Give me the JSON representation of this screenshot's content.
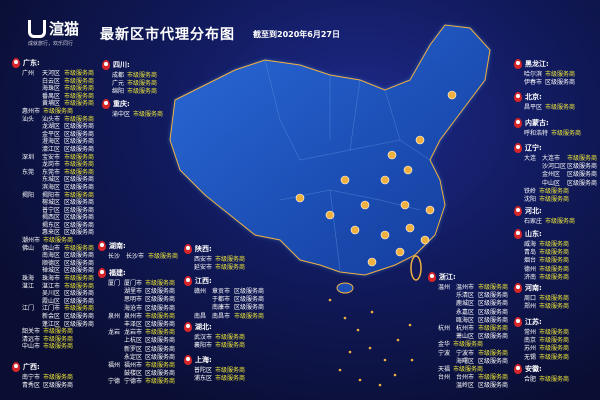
{
  "header": {
    "logo_name": "渲猫",
    "logo_sub": "YIMAO",
    "logo_slogan": "成就旅行，欢乐同行",
    "title": "最新区市代理分布图",
    "date": "截至到2020年6月27日"
  },
  "colors": {
    "city_level": "#f2ea3a",
    "district_level": "#ffffff",
    "pin": "#d6262a",
    "map": "#1d4fb8",
    "border": "#f0b040"
  },
  "groups": [
    {
      "province": "广东:",
      "rows": [
        [
          "广州",
          "天河区",
          "市级服务商"
        ],
        [
          "",
          "白云区",
          "市级服务商"
        ],
        [
          "",
          "海珠区",
          "市级服务商"
        ],
        [
          "",
          "番禺区",
          "市级服务商"
        ],
        [
          "",
          "黄埔区",
          "市级服务商"
        ],
        [
          "惠州市",
          "",
          "市级服务商"
        ],
        [
          "汕头",
          "汕头市",
          "市级服务商"
        ],
        [
          "",
          "龙湖区",
          "区级服务商"
        ],
        [
          "",
          "金平区",
          "区级服务商"
        ],
        [
          "",
          "澄海区",
          "区级服务商"
        ],
        [
          "",
          "濠江区",
          "区级服务商"
        ],
        [
          "深圳",
          "宝安市",
          "市级服务商"
        ],
        [
          "",
          "龙岗市",
          "市级服务商"
        ],
        [
          "东莞",
          "东莞市",
          "市级服务商"
        ],
        [
          "",
          "东城区",
          "区级服务商"
        ],
        [
          "",
          "滨海区",
          "区级服务商"
        ],
        [
          "揭阳",
          "揭阳市",
          "市级服务商"
        ],
        [
          "",
          "榕城区",
          "区级服务商"
        ],
        [
          "",
          "普宁区",
          "区级服务商"
        ],
        [
          "",
          "揭西区",
          "区级服务商"
        ],
        [
          "",
          "揭东区",
          "区级服务商"
        ],
        [
          "",
          "惠来区",
          "区级服务商"
        ],
        [
          "潮州市",
          "",
          "市级服务商"
        ],
        [
          "佛山",
          "佛山市",
          "市级服务商"
        ],
        [
          "",
          "南海区",
          "区级服务商"
        ],
        [
          "",
          "顺德区",
          "区级服务商"
        ],
        [
          "",
          "禅城区",
          "区级服务商"
        ],
        [
          "珠海",
          "珠海市",
          "市级服务商"
        ],
        [
          "湛江",
          "湛江市",
          "市级服务商"
        ],
        [
          "",
          "吴川区",
          "区级服务商"
        ],
        [
          "",
          "霞山区",
          "区级服务商"
        ],
        [
          "江门",
          "江门市",
          "市级服务商"
        ],
        [
          "",
          "新会区",
          "区级服务商"
        ],
        [
          "",
          "蓬江区",
          "区级服务商"
        ],
        [
          "韶关市",
          "",
          "市级服务商"
        ],
        [
          "清远市",
          "",
          "市级服务商"
        ],
        [
          "中山市",
          "",
          "市级服务商"
        ]
      ]
    },
    {
      "province": "广西:",
      "rows": [
        [
          "南宁市",
          "",
          "市级服务商"
        ],
        [
          "青秀区",
          "",
          "区级服务商"
        ]
      ]
    },
    {
      "province": "四川:",
      "rows": [
        [
          "成都",
          "",
          "市级服务商"
        ],
        [
          "广元",
          "",
          "市级服务商"
        ],
        [
          "绵阳",
          "",
          "市级服务商"
        ]
      ]
    },
    {
      "province": "重庆:",
      "rows": [
        [
          "渝中区",
          "",
          "市级服务商"
        ]
      ]
    },
    {
      "province": "湖南:",
      "rows": [
        [
          "长沙",
          "长沙市",
          "市级服务商"
        ]
      ]
    },
    {
      "province": "福建:",
      "rows": [
        [
          "厦门",
          "厦门市",
          "市级服务商"
        ],
        [
          "",
          "湖里市",
          "区级服务商"
        ],
        [
          "",
          "思明市",
          "区级服务商"
        ],
        [
          "",
          "海沧市",
          "区级服务商"
        ],
        [
          "泉州",
          "泉州市",
          "市级服务商"
        ],
        [
          "",
          "丰泽区",
          "区级服务商"
        ],
        [
          "龙岩",
          "龙岩市",
          "市级服务商"
        ],
        [
          "",
          "上杭区",
          "区级服务商"
        ],
        [
          "",
          "新罗区",
          "区级服务商"
        ],
        [
          "",
          "永定区",
          "区级服务商"
        ],
        [
          "福州",
          "福州市",
          "市级服务商"
        ],
        [
          "",
          "鼓楼区",
          "区级服务商"
        ],
        [
          "宁德",
          "宁德市",
          "市级服务商"
        ]
      ]
    },
    {
      "province": "陕西:",
      "rows": [
        [
          "西安市",
          "",
          "市级服务商"
        ],
        [
          "延安市",
          "",
          "市级服务商"
        ]
      ]
    },
    {
      "province": "江西:",
      "rows": [
        [
          "赣州",
          "章贡市",
          "区级服务商"
        ],
        [
          "",
          "于都市",
          "区级服务商"
        ],
        [
          "",
          "南康市",
          "区级服务商"
        ],
        [
          "南昌",
          "南昌市",
          "市级服务商"
        ]
      ]
    },
    {
      "province": "湖北:",
      "rows": [
        [
          "武汉市",
          "",
          "市级服务商"
        ],
        [
          "襄阳市",
          "",
          "市级服务商"
        ]
      ]
    },
    {
      "province": "上海:",
      "rows": [
        [
          "普陀区",
          "",
          "市级服务商"
        ],
        [
          "浦东区",
          "",
          "市级服务商"
        ]
      ]
    },
    {
      "province": "浙江:",
      "rows": [
        [
          "温州",
          "温州市",
          "市级服务商"
        ],
        [
          "",
          "乐清区",
          "区级服务商"
        ],
        [
          "",
          "鹿城区",
          "区级服务商"
        ],
        [
          "",
          "永嘉区",
          "区级服务商"
        ],
        [
          "",
          "瓯海区",
          "区级服务商"
        ],
        [
          "杭州",
          "杭州市",
          "市级服务商"
        ],
        [
          "",
          "萧山区",
          "区级服务商"
        ],
        [
          "金华",
          "",
          "市级服务商"
        ],
        [
          "宁波",
          "宁波市",
          "市级服务商"
        ],
        [
          "",
          "海曙区",
          "区级服务商"
        ],
        [
          "天福",
          "",
          "市级服务商"
        ],
        [
          "台州",
          "台州市",
          "市级服务商"
        ],
        [
          "",
          "温岭区",
          "区级服务商"
        ]
      ]
    },
    {
      "province": "黑龙江:",
      "rows": [
        [
          "哈尔滨",
          "",
          "市级服务商"
        ],
        [
          "伊春市",
          "",
          "区级服务商"
        ]
      ]
    },
    {
      "province": "北京:",
      "rows": [
        [
          "昌平区",
          "",
          "市级服务商"
        ]
      ]
    },
    {
      "province": "内蒙古:",
      "rows": [
        [
          "呼和浩特",
          "",
          "市级服务商"
        ]
      ]
    },
    {
      "province": "辽宁:",
      "rows": [
        [
          "大连",
          "大连市",
          "市级服务商"
        ],
        [
          "",
          "沙河口区",
          "区级服务商"
        ],
        [
          "",
          "金州区",
          "区级服务商"
        ],
        [
          "",
          "中山区",
          "区级服务商"
        ],
        [
          "铁岭",
          "",
          "市级服务商"
        ],
        [
          "沈阳",
          "",
          "市级服务商"
        ]
      ]
    },
    {
      "province": "河北:",
      "rows": [
        [
          "石家庄",
          "",
          "市级服务商"
        ]
      ]
    },
    {
      "province": "山东:",
      "rows": [
        [
          "威海",
          "",
          "市级服务商"
        ],
        [
          "青岛",
          "",
          "市级服务商"
        ],
        [
          "烟台",
          "",
          "市级服务商"
        ],
        [
          "德州",
          "",
          "市级服务商"
        ],
        [
          "济南",
          "",
          "市级服务商"
        ]
      ]
    },
    {
      "province": "河南:",
      "rows": [
        [
          "周口",
          "",
          "市级服务商"
        ],
        [
          "郑州",
          "",
          "市级服务商"
        ]
      ]
    },
    {
      "province": "江苏:",
      "rows": [
        [
          "常州",
          "",
          "市级服务商"
        ],
        [
          "南京",
          "",
          "市级服务商"
        ],
        [
          "苏州",
          "",
          "市级服务商"
        ],
        [
          "无锡",
          "",
          "市级服务商"
        ]
      ]
    },
    {
      "province": "安徽:",
      "rows": [
        [
          "合肥",
          "",
          "市级服务商"
        ]
      ]
    }
  ]
}
